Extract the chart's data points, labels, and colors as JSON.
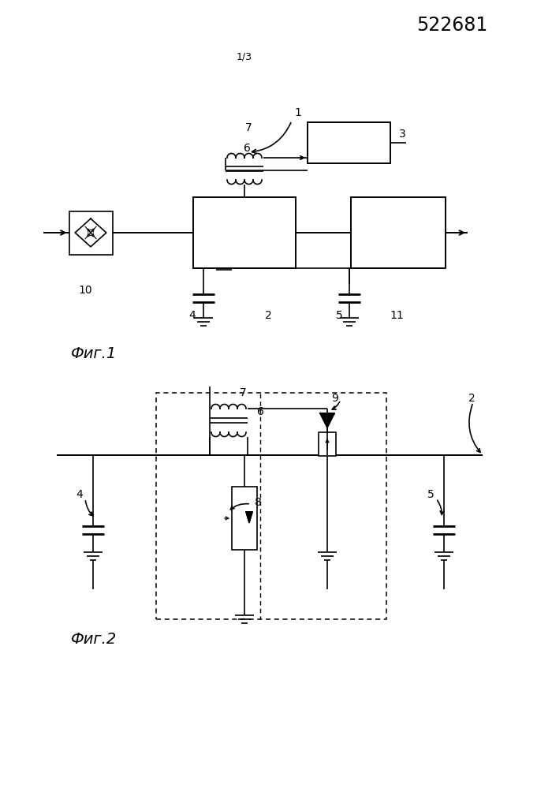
{
  "title_number": "522681",
  "page_label": "1/3",
  "fig1_label": "Фиг.1",
  "fig2_label": "Фиг.2",
  "bg_color": "#ffffff",
  "lc": "#000000",
  "lw": 1.4,
  "tlw": 1.2
}
